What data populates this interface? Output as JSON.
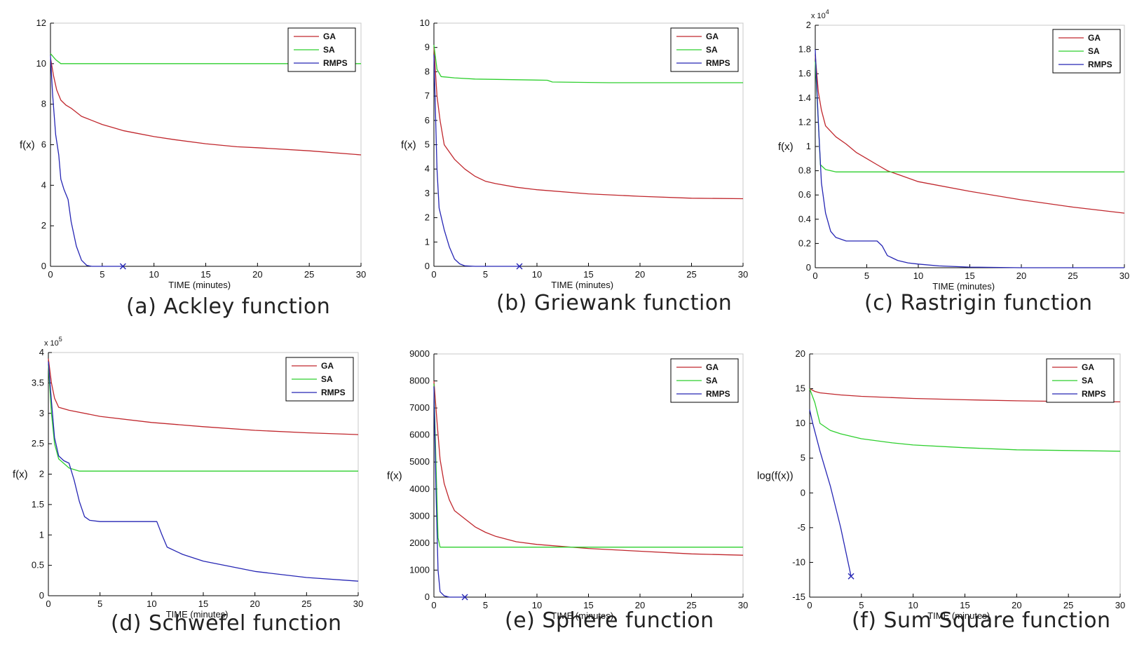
{
  "figure": {
    "captions": [
      "(a) Ackley function",
      "(b) Griewank function",
      "(c) Rastrigin function",
      "(d) Schwefel function",
      "(e) Sphere function",
      "(f) Sum Square function"
    ]
  },
  "colors": {
    "GA": "#c0272d",
    "SA": "#2ecf2e",
    "RMPS": "#2626b4"
  },
  "chart_data": [
    {
      "type": "line",
      "title": "(a) Ackley function",
      "xlabel": "TIME (minutes)",
      "ylabel": "f(x)",
      "xlim": [
        0,
        30
      ],
      "ylim": [
        0,
        12
      ],
      "xticks": [
        0,
        5,
        10,
        15,
        20,
        25,
        30
      ],
      "yticks": [
        0,
        2,
        4,
        6,
        8,
        10,
        12
      ],
      "exponent": "",
      "legend": [
        "GA",
        "SA",
        "RMPS"
      ],
      "series": [
        {
          "name": "GA",
          "points": [
            [
              0,
              10.3
            ],
            [
              0.3,
              9.4
            ],
            [
              0.6,
              8.7
            ],
            [
              1,
              8.2
            ],
            [
              1.5,
              7.95
            ],
            [
              2,
              7.8
            ],
            [
              3,
              7.4
            ],
            [
              4,
              7.2
            ],
            [
              5,
              7.0
            ],
            [
              6,
              6.85
            ],
            [
              7,
              6.7
            ],
            [
              8,
              6.6
            ],
            [
              10,
              6.4
            ],
            [
              12,
              6.25
            ],
            [
              15,
              6.05
            ],
            [
              18,
              5.9
            ],
            [
              20,
              5.85
            ],
            [
              25,
              5.7
            ],
            [
              30,
              5.5
            ]
          ]
        },
        {
          "name": "SA",
          "points": [
            [
              0,
              10.5
            ],
            [
              0.5,
              10.2
            ],
            [
              1,
              10.0
            ],
            [
              2,
              10.0
            ],
            [
              30,
              10.0
            ]
          ]
        },
        {
          "name": "RMPS",
          "points": [
            [
              0,
              10.4
            ],
            [
              0.2,
              8.5
            ],
            [
              0.5,
              6.5
            ],
            [
              0.8,
              5.5
            ],
            [
              1,
              4.3
            ],
            [
              1.3,
              3.8
            ],
            [
              1.7,
              3.3
            ],
            [
              2,
              2.2
            ],
            [
              2.5,
              1.0
            ],
            [
              3,
              0.3
            ],
            [
              3.5,
              0.05
            ],
            [
              4,
              0
            ],
            [
              7,
              0
            ]
          ],
          "end_marker": [
            7,
            0
          ]
        }
      ]
    },
    {
      "type": "line",
      "title": "(b) Griewank function",
      "xlabel": "TIME (minutes)",
      "ylabel": "f(x)",
      "xlim": [
        0,
        30
      ],
      "ylim": [
        0,
        10
      ],
      "xticks": [
        0,
        5,
        10,
        15,
        20,
        25,
        30
      ],
      "yticks": [
        0,
        1,
        2,
        3,
        4,
        5,
        6,
        7,
        8,
        9,
        10
      ],
      "exponent": "",
      "legend": [
        "GA",
        "SA",
        "RMPS"
      ],
      "series": [
        {
          "name": "GA",
          "points": [
            [
              0,
              9.0
            ],
            [
              0.3,
              7.0
            ],
            [
              0.6,
              6.0
            ],
            [
              1,
              5.0
            ],
            [
              2,
              4.4
            ],
            [
              3,
              4.0
            ],
            [
              4,
              3.7
            ],
            [
              5,
              3.5
            ],
            [
              6,
              3.4
            ],
            [
              8,
              3.25
            ],
            [
              10,
              3.15
            ],
            [
              15,
              2.98
            ],
            [
              20,
              2.88
            ],
            [
              25,
              2.8
            ],
            [
              30,
              2.78
            ]
          ]
        },
        {
          "name": "SA",
          "points": [
            [
              0,
              9.1
            ],
            [
              0.3,
              8.1
            ],
            [
              0.7,
              7.8
            ],
            [
              2,
              7.75
            ],
            [
              4,
              7.7
            ],
            [
              11,
              7.65
            ],
            [
              11.5,
              7.58
            ],
            [
              17,
              7.55
            ],
            [
              30,
              7.55
            ]
          ]
        },
        {
          "name": "RMPS",
          "points": [
            [
              0,
              8.7
            ],
            [
              0.3,
              4.0
            ],
            [
              0.5,
              2.4
            ],
            [
              1,
              1.5
            ],
            [
              1.5,
              0.8
            ],
            [
              2,
              0.3
            ],
            [
              2.5,
              0.1
            ],
            [
              3,
              0.02
            ],
            [
              4,
              0
            ],
            [
              8.3,
              0
            ]
          ],
          "end_marker": [
            8.3,
            0
          ]
        }
      ]
    },
    {
      "type": "line",
      "title": "(c) Rastrigin function",
      "xlabel": "TIME (minutes)",
      "ylabel": "f(x)",
      "xlim": [
        0,
        30
      ],
      "ylim": [
        0,
        2
      ],
      "xticks": [
        0,
        5,
        10,
        15,
        20,
        25,
        30
      ],
      "yticks": [
        0,
        0.2,
        0.4,
        0.6,
        0.8,
        1,
        1.2,
        1.4,
        1.6,
        1.8,
        2
      ],
      "exponent": "x 10^4",
      "legend": [
        "GA",
        "SA",
        "RMPS"
      ],
      "series": [
        {
          "name": "GA",
          "points": [
            [
              0,
              1.75
            ],
            [
              0.3,
              1.45
            ],
            [
              0.6,
              1.3
            ],
            [
              1,
              1.17
            ],
            [
              2,
              1.08
            ],
            [
              3,
              1.02
            ],
            [
              4,
              0.95
            ],
            [
              5,
              0.9
            ],
            [
              6,
              0.85
            ],
            [
              7,
              0.8
            ],
            [
              8,
              0.77
            ],
            [
              10,
              0.71
            ],
            [
              15,
              0.63
            ],
            [
              20,
              0.56
            ],
            [
              25,
              0.5
            ],
            [
              30,
              0.45
            ]
          ]
        },
        {
          "name": "SA",
          "points": [
            [
              0,
              1.7
            ],
            [
              0.3,
              1.2
            ],
            [
              0.5,
              0.85
            ],
            [
              1,
              0.81
            ],
            [
              2,
              0.79
            ],
            [
              30,
              0.79
            ]
          ]
        },
        {
          "name": "RMPS",
          "points": [
            [
              0,
              1.8
            ],
            [
              0.3,
              1.2
            ],
            [
              0.6,
              0.7
            ],
            [
              1,
              0.45
            ],
            [
              1.5,
              0.3
            ],
            [
              2,
              0.25
            ],
            [
              3,
              0.22
            ],
            [
              4,
              0.22
            ],
            [
              5,
              0.22
            ],
            [
              6,
              0.22
            ],
            [
              6.5,
              0.18
            ],
            [
              7,
              0.1
            ],
            [
              8,
              0.06
            ],
            [
              9,
              0.04
            ],
            [
              10,
              0.03
            ],
            [
              12,
              0.015
            ],
            [
              15,
              0.005
            ],
            [
              20,
              0
            ],
            [
              30,
              0
            ]
          ]
        }
      ]
    },
    {
      "type": "line",
      "title": "(d) Schwefel function",
      "xlabel": "TIME (minutes)",
      "ylabel": "f(x)",
      "xlim": [
        0,
        30
      ],
      "ylim": [
        0,
        4
      ],
      "xticks": [
        0,
        5,
        10,
        15,
        20,
        25,
        30
      ],
      "yticks": [
        0,
        0.5,
        1,
        1.5,
        2,
        2.5,
        3,
        3.5,
        4
      ],
      "exponent": "x 10^5",
      "legend": [
        "GA",
        "SA",
        "RMPS"
      ],
      "series": [
        {
          "name": "GA",
          "points": [
            [
              0,
              3.9
            ],
            [
              0.3,
              3.5
            ],
            [
              0.6,
              3.25
            ],
            [
              1,
              3.1
            ],
            [
              2,
              3.05
            ],
            [
              5,
              2.95
            ],
            [
              10,
              2.85
            ],
            [
              15,
              2.78
            ],
            [
              20,
              2.72
            ],
            [
              25,
              2.68
            ],
            [
              30,
              2.65
            ]
          ]
        },
        {
          "name": "SA",
          "points": [
            [
              0,
              3.8
            ],
            [
              0.3,
              3.0
            ],
            [
              0.6,
              2.5
            ],
            [
              1,
              2.25
            ],
            [
              2,
              2.1
            ],
            [
              3,
              2.05
            ],
            [
              30,
              2.05
            ]
          ]
        },
        {
          "name": "RMPS",
          "points": [
            [
              0,
              3.85
            ],
            [
              0.3,
              3.2
            ],
            [
              0.6,
              2.6
            ],
            [
              1,
              2.3
            ],
            [
              1.5,
              2.22
            ],
            [
              2,
              2.18
            ],
            [
              2.5,
              1.9
            ],
            [
              3,
              1.55
            ],
            [
              3.5,
              1.3
            ],
            [
              4,
              1.24
            ],
            [
              5,
              1.22
            ],
            [
              10.5,
              1.22
            ],
            [
              11,
              1.0
            ],
            [
              11.5,
              0.8
            ],
            [
              13,
              0.68
            ],
            [
              15,
              0.57
            ],
            [
              20,
              0.4
            ],
            [
              25,
              0.3
            ],
            [
              30,
              0.24
            ]
          ]
        }
      ]
    },
    {
      "type": "line",
      "title": "(e) Sphere function",
      "xlabel": "TIME (minutes)",
      "ylabel": "f(x)",
      "xlim": [
        0,
        30
      ],
      "ylim": [
        0,
        9000
      ],
      "xticks": [
        0,
        5,
        10,
        15,
        20,
        25,
        30
      ],
      "yticks": [
        0,
        1000,
        2000,
        3000,
        4000,
        5000,
        6000,
        7000,
        8000,
        9000
      ],
      "exponent": "",
      "legend": [
        "GA",
        "SA",
        "RMPS"
      ],
      "series": [
        {
          "name": "GA",
          "points": [
            [
              0,
              8000
            ],
            [
              0.3,
              6500
            ],
            [
              0.6,
              5100
            ],
            [
              1,
              4200
            ],
            [
              1.5,
              3600
            ],
            [
              2,
              3200
            ],
            [
              3,
              2900
            ],
            [
              4,
              2600
            ],
            [
              5,
              2400
            ],
            [
              6,
              2250
            ],
            [
              8,
              2050
            ],
            [
              10,
              1950
            ],
            [
              15,
              1800
            ],
            [
              20,
              1700
            ],
            [
              25,
              1600
            ],
            [
              30,
              1550
            ]
          ]
        },
        {
          "name": "SA",
          "points": [
            [
              0,
              7900
            ],
            [
              0.2,
              5000
            ],
            [
              0.4,
              2200
            ],
            [
              0.6,
              1850
            ],
            [
              1,
              1850
            ],
            [
              30,
              1850
            ]
          ]
        },
        {
          "name": "RMPS",
          "points": [
            [
              0,
              7800
            ],
            [
              0.2,
              4000
            ],
            [
              0.4,
              1000
            ],
            [
              0.6,
              200
            ],
            [
              1,
              50
            ],
            [
              1.5,
              0
            ],
            [
              3,
              0
            ]
          ],
          "end_marker": [
            3,
            0
          ]
        }
      ]
    },
    {
      "type": "line",
      "title": "(f) Sum Square function",
      "xlabel": "TIME (minutes)",
      "ylabel": "log(f(x))",
      "xlim": [
        0,
        30
      ],
      "ylim": [
        -15,
        20
      ],
      "xticks": [
        0,
        5,
        10,
        15,
        20,
        25,
        30
      ],
      "yticks": [
        -15,
        -10,
        -5,
        0,
        5,
        10,
        15,
        20
      ],
      "exponent": "",
      "legend": [
        "GA",
        "SA",
        "RMPS"
      ],
      "series": [
        {
          "name": "GA",
          "points": [
            [
              0,
              15
            ],
            [
              0.5,
              14.6
            ],
            [
              1,
              14.4
            ],
            [
              3,
              14.1
            ],
            [
              5,
              13.9
            ],
            [
              10,
              13.6
            ],
            [
              15,
              13.4
            ],
            [
              20,
              13.25
            ],
            [
              25,
              13.15
            ],
            [
              30,
              13.1
            ]
          ]
        },
        {
          "name": "SA",
          "points": [
            [
              0,
              15
            ],
            [
              0.5,
              13
            ],
            [
              1,
              10
            ],
            [
              2,
              9
            ],
            [
              3,
              8.5
            ],
            [
              5,
              7.8
            ],
            [
              8,
              7.2
            ],
            [
              10,
              6.9
            ],
            [
              15,
              6.5
            ],
            [
              20,
              6.2
            ],
            [
              25,
              6.1
            ],
            [
              30,
              6.0
            ]
          ]
        },
        {
          "name": "RMPS",
          "points": [
            [
              0,
              12
            ],
            [
              0.3,
              10
            ],
            [
              1,
              6
            ],
            [
              2,
              1
            ],
            [
              3,
              -5
            ],
            [
              4,
              -12
            ]
          ],
          "end_marker": [
            4,
            -12
          ]
        }
      ]
    }
  ]
}
